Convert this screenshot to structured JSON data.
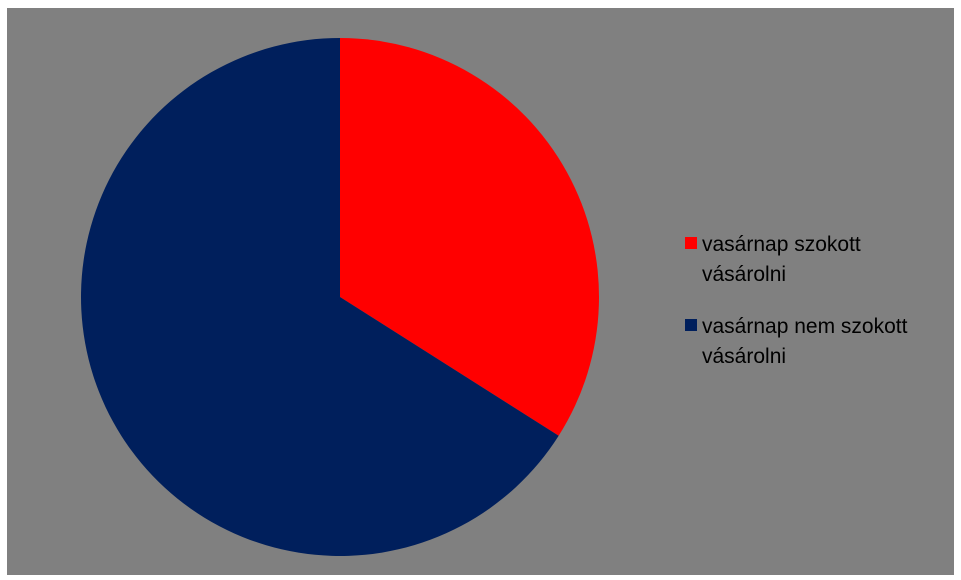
{
  "chart_data": {
    "type": "pie",
    "categories": [
      "vasárnap szokott vásárolni",
      "vasárnap nem szokott vásárolni"
    ],
    "values": [
      34,
      66
    ],
    "colors": [
      "#FF0000",
      "#001F5C"
    ],
    "title": "",
    "legend_position": "right"
  },
  "background_color": "#808080",
  "legend": {
    "items": [
      {
        "label": "vasárnap szokott vásárolni",
        "color": "#FF0000"
      },
      {
        "label": "vasárnap nem szokott vásárolni",
        "color": "#001F5C"
      }
    ]
  }
}
